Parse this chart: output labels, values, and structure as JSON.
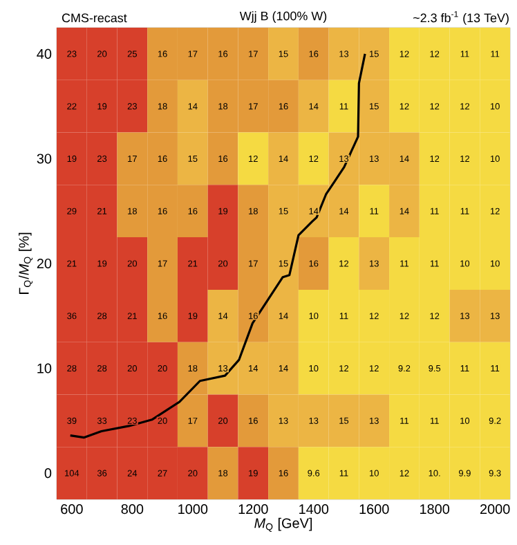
{
  "chart_data": {
    "type": "heatmap",
    "title": "Wjj B (100% W)",
    "annotations": [
      "CMS-recast",
      "~2.3 fb$^{-1}$ (13 TeV)"
    ],
    "xlabel": "*M*$_{Q}$ [GeV]",
    "ylabel": "Γ$_{Q}$/*M*$_{Q}$ [%]",
    "x": [
      600,
      700,
      800,
      900,
      1000,
      1100,
      1200,
      1300,
      1400,
      1500,
      1600,
      1700,
      1800,
      1900,
      2000
    ],
    "xlim": [
      550,
      2050
    ],
    "xticks": [
      600,
      800,
      1000,
      1200,
      1400,
      1600,
      1800,
      2000
    ],
    "ylim": [
      -2.5,
      42.5
    ],
    "yticks": [
      0,
      10,
      20,
      30,
      40
    ],
    "cells": [
      [
        23,
        20,
        25,
        16,
        17,
        16,
        17,
        15,
        16,
        13,
        15,
        12,
        12,
        11,
        11
      ],
      [
        22,
        19,
        23,
        18,
        14,
        18,
        17,
        16,
        14,
        11,
        15,
        12,
        12,
        12,
        10
      ],
      [
        19,
        23,
        17,
        16,
        15,
        16,
        12,
        14,
        12,
        13,
        13,
        14,
        12,
        12,
        10
      ],
      [
        29,
        21,
        18,
        16,
        16,
        19,
        18,
        15,
        14,
        14,
        11,
        14,
        11,
        11,
        12
      ],
      [
        21,
        19,
        20,
        17,
        21,
        20,
        17,
        15,
        16,
        12,
        13,
        11,
        11,
        10,
        10
      ],
      [
        36,
        28,
        21,
        16,
        19,
        14,
        16,
        14,
        10,
        11,
        12,
        12,
        12,
        13,
        13
      ],
      [
        28,
        28,
        20,
        20,
        18,
        13,
        14,
        14,
        10,
        12,
        12,
        9.2,
        9.5,
        11,
        11
      ],
      [
        39,
        33,
        23,
        20,
        17,
        20,
        16,
        13,
        13,
        15,
        13,
        11,
        11,
        10,
        9.2
      ],
      [
        104,
        36,
        24,
        27,
        20,
        18,
        19,
        16,
        9.6,
        11,
        10,
        12,
        10,
        9.9,
        9.3
      ]
    ],
    "cell_labels": [
      [
        "23",
        "20",
        "25",
        "16",
        "17",
        "16",
        "17",
        "15",
        "16",
        "13",
        "15",
        "12",
        "12",
        "11",
        "11"
      ],
      [
        "22",
        "19",
        "23",
        "18",
        "14",
        "18",
        "17",
        "16",
        "14",
        "11",
        "15",
        "12",
        "12",
        "12",
        "10"
      ],
      [
        "19",
        "23",
        "17",
        "16",
        "15",
        "16",
        "12",
        "14",
        "12",
        "13",
        "13",
        "14",
        "12",
        "12",
        "10"
      ],
      [
        "29",
        "21",
        "18",
        "16",
        "16",
        "19",
        "18",
        "15",
        "14",
        "14",
        "11",
        "14",
        "11",
        "11",
        "12"
      ],
      [
        "21",
        "19",
        "20",
        "17",
        "21",
        "20",
        "17",
        "15",
        "16",
        "12",
        "13",
        "11",
        "11",
        "10",
        "10"
      ],
      [
        "36",
        "28",
        "21",
        "16",
        "19",
        "14",
        "16",
        "14",
        "10",
        "11",
        "12",
        "12",
        "12",
        "13",
        "13"
      ],
      [
        "28",
        "28",
        "20",
        "20",
        "18",
        "13",
        "14",
        "14",
        "10",
        "12",
        "12",
        "9.2",
        "9.5",
        "11",
        "11"
      ],
      [
        "39",
        "33",
        "23",
        "20",
        "17",
        "20",
        "16",
        "13",
        "13",
        "15",
        "13",
        "11",
        "11",
        "10",
        "9.2"
      ],
      [
        "104",
        "36",
        "24",
        "27",
        "20",
        "18",
        "19",
        "16",
        "9.6",
        "11",
        "10",
        "12",
        "10.",
        "9.9",
        "9.3"
      ]
    ],
    "series": [
      {
        "type": "line",
        "color": "#000000",
        "x": [
          595,
          641,
          698,
          789,
          865,
          956,
          1024,
          1107,
          1153,
          1198,
          1298,
          1320,
          1350,
          1395,
          1410,
          1441,
          1471,
          1501,
          1547,
          1550,
          1570
        ],
        "values": [
          3.6,
          3.4,
          4.0,
          4.5,
          5.1,
          6.8,
          8.8,
          9.3,
          10.8,
          14.3,
          18.7,
          18.9,
          22.7,
          24.0,
          24.4,
          26.6,
          27.9,
          29.2,
          32.1,
          37.2,
          40.0
        ]
      }
    ]
  }
}
